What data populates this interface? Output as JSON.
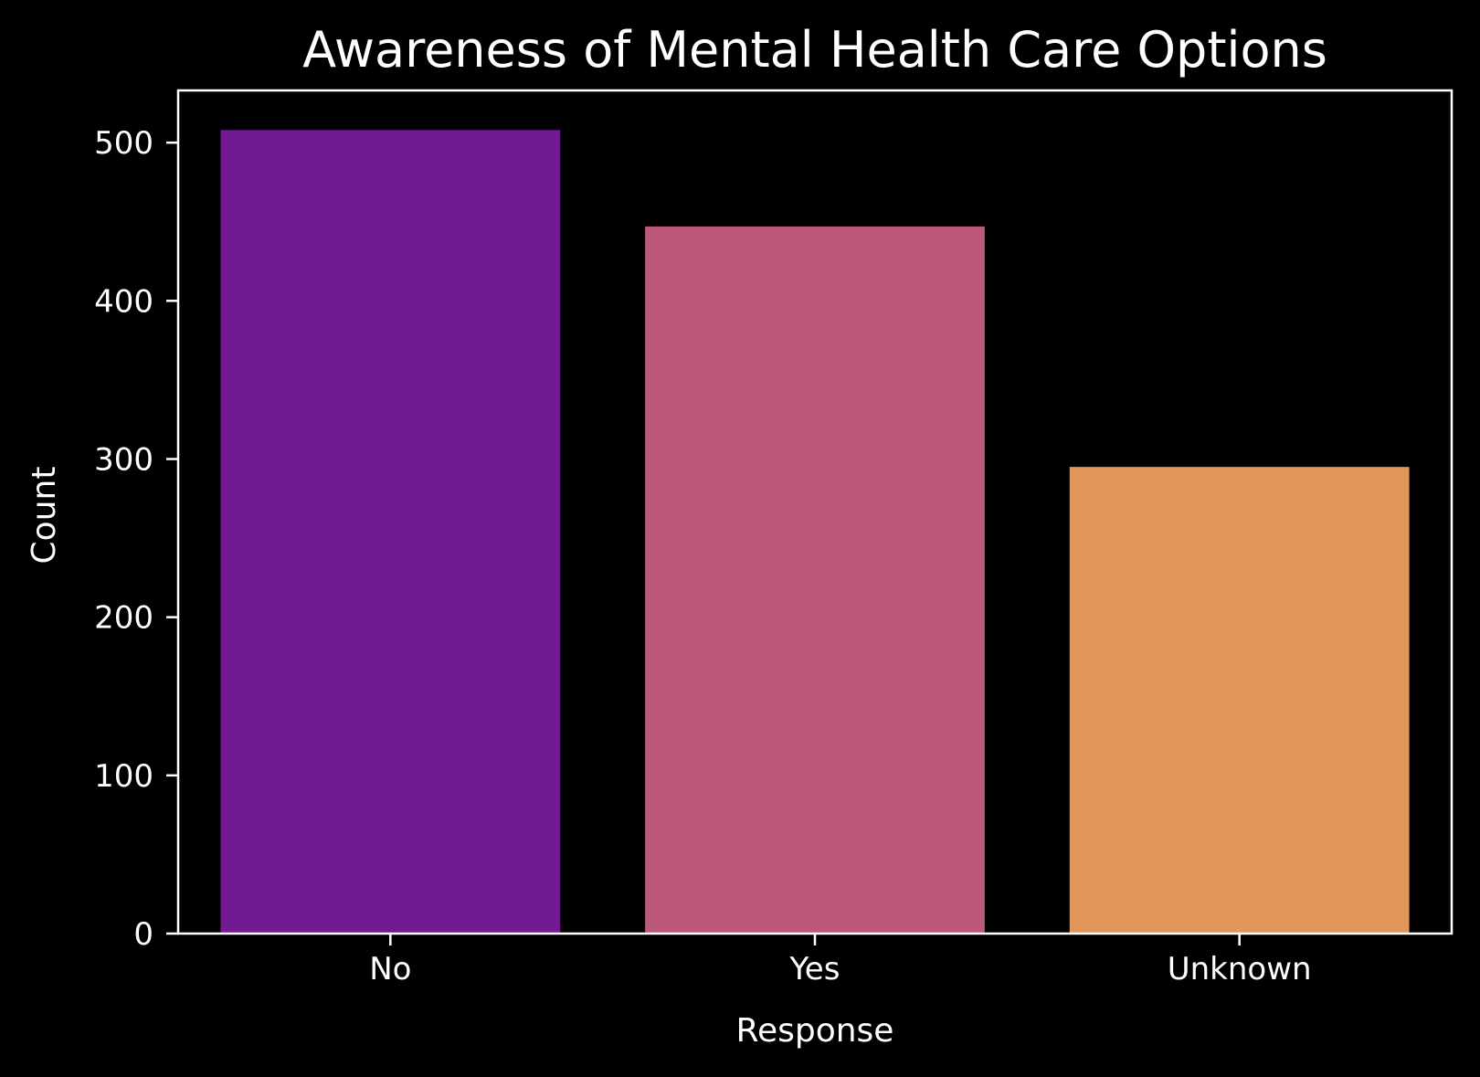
{
  "chart_data": {
    "type": "bar",
    "title": "Awareness of Mental Health Care Options",
    "xlabel": "Response",
    "ylabel": "Count",
    "categories": [
      "No",
      "Yes",
      "Unknown"
    ],
    "values": [
      508,
      447,
      295
    ],
    "colors": [
      "#721994",
      "#bc597b",
      "#e1975a"
    ],
    "ylim": [
      0,
      533
    ],
    "yticks": [
      0,
      100,
      200,
      300,
      400,
      500
    ],
    "grid": false,
    "legend": "none",
    "background": "#000000",
    "foreground": "#ffffff"
  }
}
